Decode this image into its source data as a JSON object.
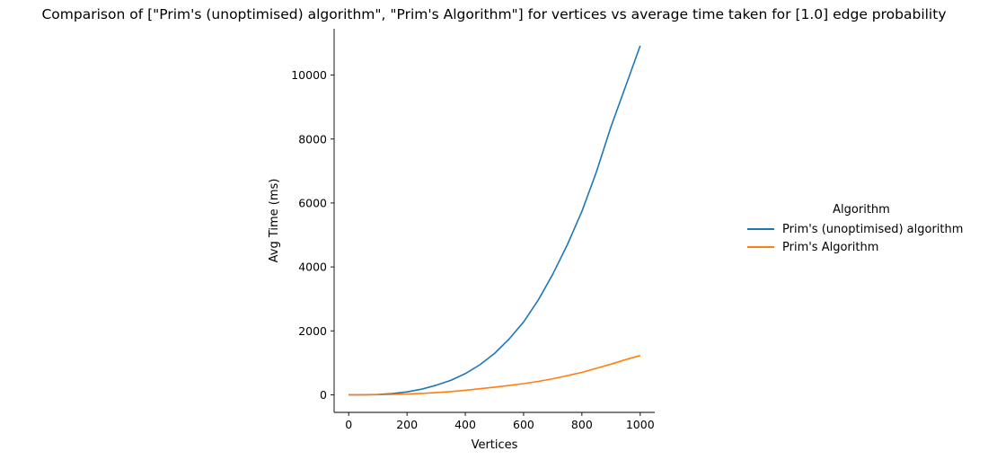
{
  "chart_data": {
    "type": "line",
    "title": "Comparison of [\"Prim's (unoptimised) algorithm\", \"Prim's Algorithm\"] for vertices vs average time taken for [1.0] edge probability",
    "xlabel": "Vertices",
    "ylabel": "Avg Time (ms)",
    "xlim": [
      -50,
      1050
    ],
    "ylim": [
      -550,
      11450
    ],
    "xticks": [
      0,
      200,
      400,
      600,
      800,
      1000
    ],
    "yticks": [
      0,
      2000,
      4000,
      6000,
      8000,
      10000
    ],
    "legend_title": "Algorithm",
    "legend_position": "right",
    "grid": false,
    "x": [
      0,
      50,
      100,
      150,
      200,
      250,
      300,
      350,
      400,
      450,
      500,
      550,
      600,
      650,
      700,
      750,
      800,
      850,
      900,
      950,
      1000
    ],
    "series": [
      {
        "name": "Prim's (unoptimised) algorithm",
        "color": "#1f77b4",
        "values": [
          0,
          2,
          10,
          38,
          90,
          175,
          300,
          450,
          660,
          940,
          1290,
          1740,
          2280,
          2960,
          3770,
          4690,
          5740,
          6980,
          8390,
          9650,
          10920
        ]
      },
      {
        "name": "Prim's Algorithm",
        "color": "#ff7f0e",
        "values": [
          0,
          1,
          5,
          12,
          24,
          42,
          70,
          100,
          140,
          190,
          240,
          290,
          350,
          420,
          500,
          600,
          700,
          830,
          960,
          1100,
          1230
        ]
      }
    ]
  }
}
